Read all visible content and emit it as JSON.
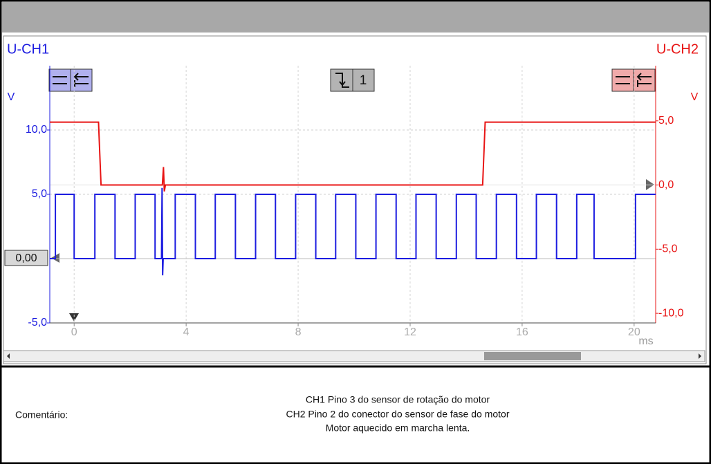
{
  "chart_data": {
    "type": "line",
    "xlabel": "ms",
    "ylabel": "V",
    "y2label": "V",
    "xlim": [
      -0.87,
      20.77
    ],
    "xticks": [
      0,
      4,
      8,
      12,
      16,
      20
    ],
    "ylim": [
      -5,
      15
    ],
    "yticks": [
      {
        "value": -5,
        "label": "-5,0"
      },
      {
        "value": 5,
        "label": "5,0"
      },
      {
        "value": 10,
        "label": "10,0"
      }
    ],
    "y2lim": [
      -10.75,
      9.3
    ],
    "y2ticks": [
      {
        "value": -10,
        "label": "-10,0"
      },
      {
        "value": -5,
        "label": "-5,0"
      },
      {
        "value": 0,
        "label": "0,0"
      },
      {
        "value": 5,
        "label": "5,0"
      }
    ],
    "grid": true,
    "offset_marker": "0,00",
    "series": [
      {
        "name": "U-CH1",
        "color": "#1c1ce0",
        "x": [
          -0.87,
          -0.67,
          -0.67,
          0,
          0,
          0.74,
          0.74,
          1.46,
          1.46,
          2.18,
          2.18,
          2.89,
          2.89,
          3.12,
          3.14,
          3.16,
          3.18,
          3.61,
          3.61,
          4.33,
          4.33,
          5.04,
          5.04,
          5.76,
          5.76,
          6.48,
          6.48,
          7.19,
          7.19,
          7.91,
          7.91,
          8.63,
          8.63,
          9.34,
          9.34,
          10.06,
          10.06,
          10.78,
          10.78,
          11.5,
          11.5,
          12.21,
          12.21,
          12.93,
          12.93,
          13.65,
          13.65,
          14.36,
          14.36,
          15.08,
          15.08,
          15.8,
          15.8,
          16.51,
          16.51,
          17.23,
          17.23,
          17.95,
          17.95,
          18.57,
          18.57,
          20.05,
          20.05,
          20.77
        ],
        "values": [
          0,
          0,
          5,
          5,
          0,
          0,
          5,
          5,
          0,
          0,
          5,
          5,
          0,
          0,
          5.5,
          -1.3,
          0,
          0,
          5,
          5,
          0,
          0,
          5,
          5,
          0,
          0,
          5,
          5,
          0,
          0,
          5,
          5,
          0,
          0,
          5,
          5,
          0,
          0,
          5,
          5,
          0,
          0,
          5,
          5,
          0,
          0,
          5,
          5,
          0,
          0,
          5,
          5,
          0,
          0,
          5,
          5,
          0,
          0,
          5,
          5,
          0,
          0,
          5,
          5
        ]
      },
      {
        "name": "U-CH2",
        "color": "#e81414",
        "axis": "y2",
        "x": [
          -0.87,
          0.87,
          0.96,
          3.15,
          3.19,
          3.22,
          3.26,
          14.59,
          14.68,
          20.77
        ],
        "values": [
          4.9,
          4.9,
          0,
          0,
          1.4,
          -0.5,
          0,
          0,
          4.9,
          4.9
        ]
      }
    ]
  },
  "toolbar": {
    "trigger_channel": "1"
  },
  "comment": {
    "label": "Comentário:",
    "lines": [
      "CH1 Pino 3 do sensor de rotação do motor",
      "CH2 Pino 2 do conector do sensor de fase do motor",
      "Motor aquecido em marcha lenta."
    ]
  }
}
